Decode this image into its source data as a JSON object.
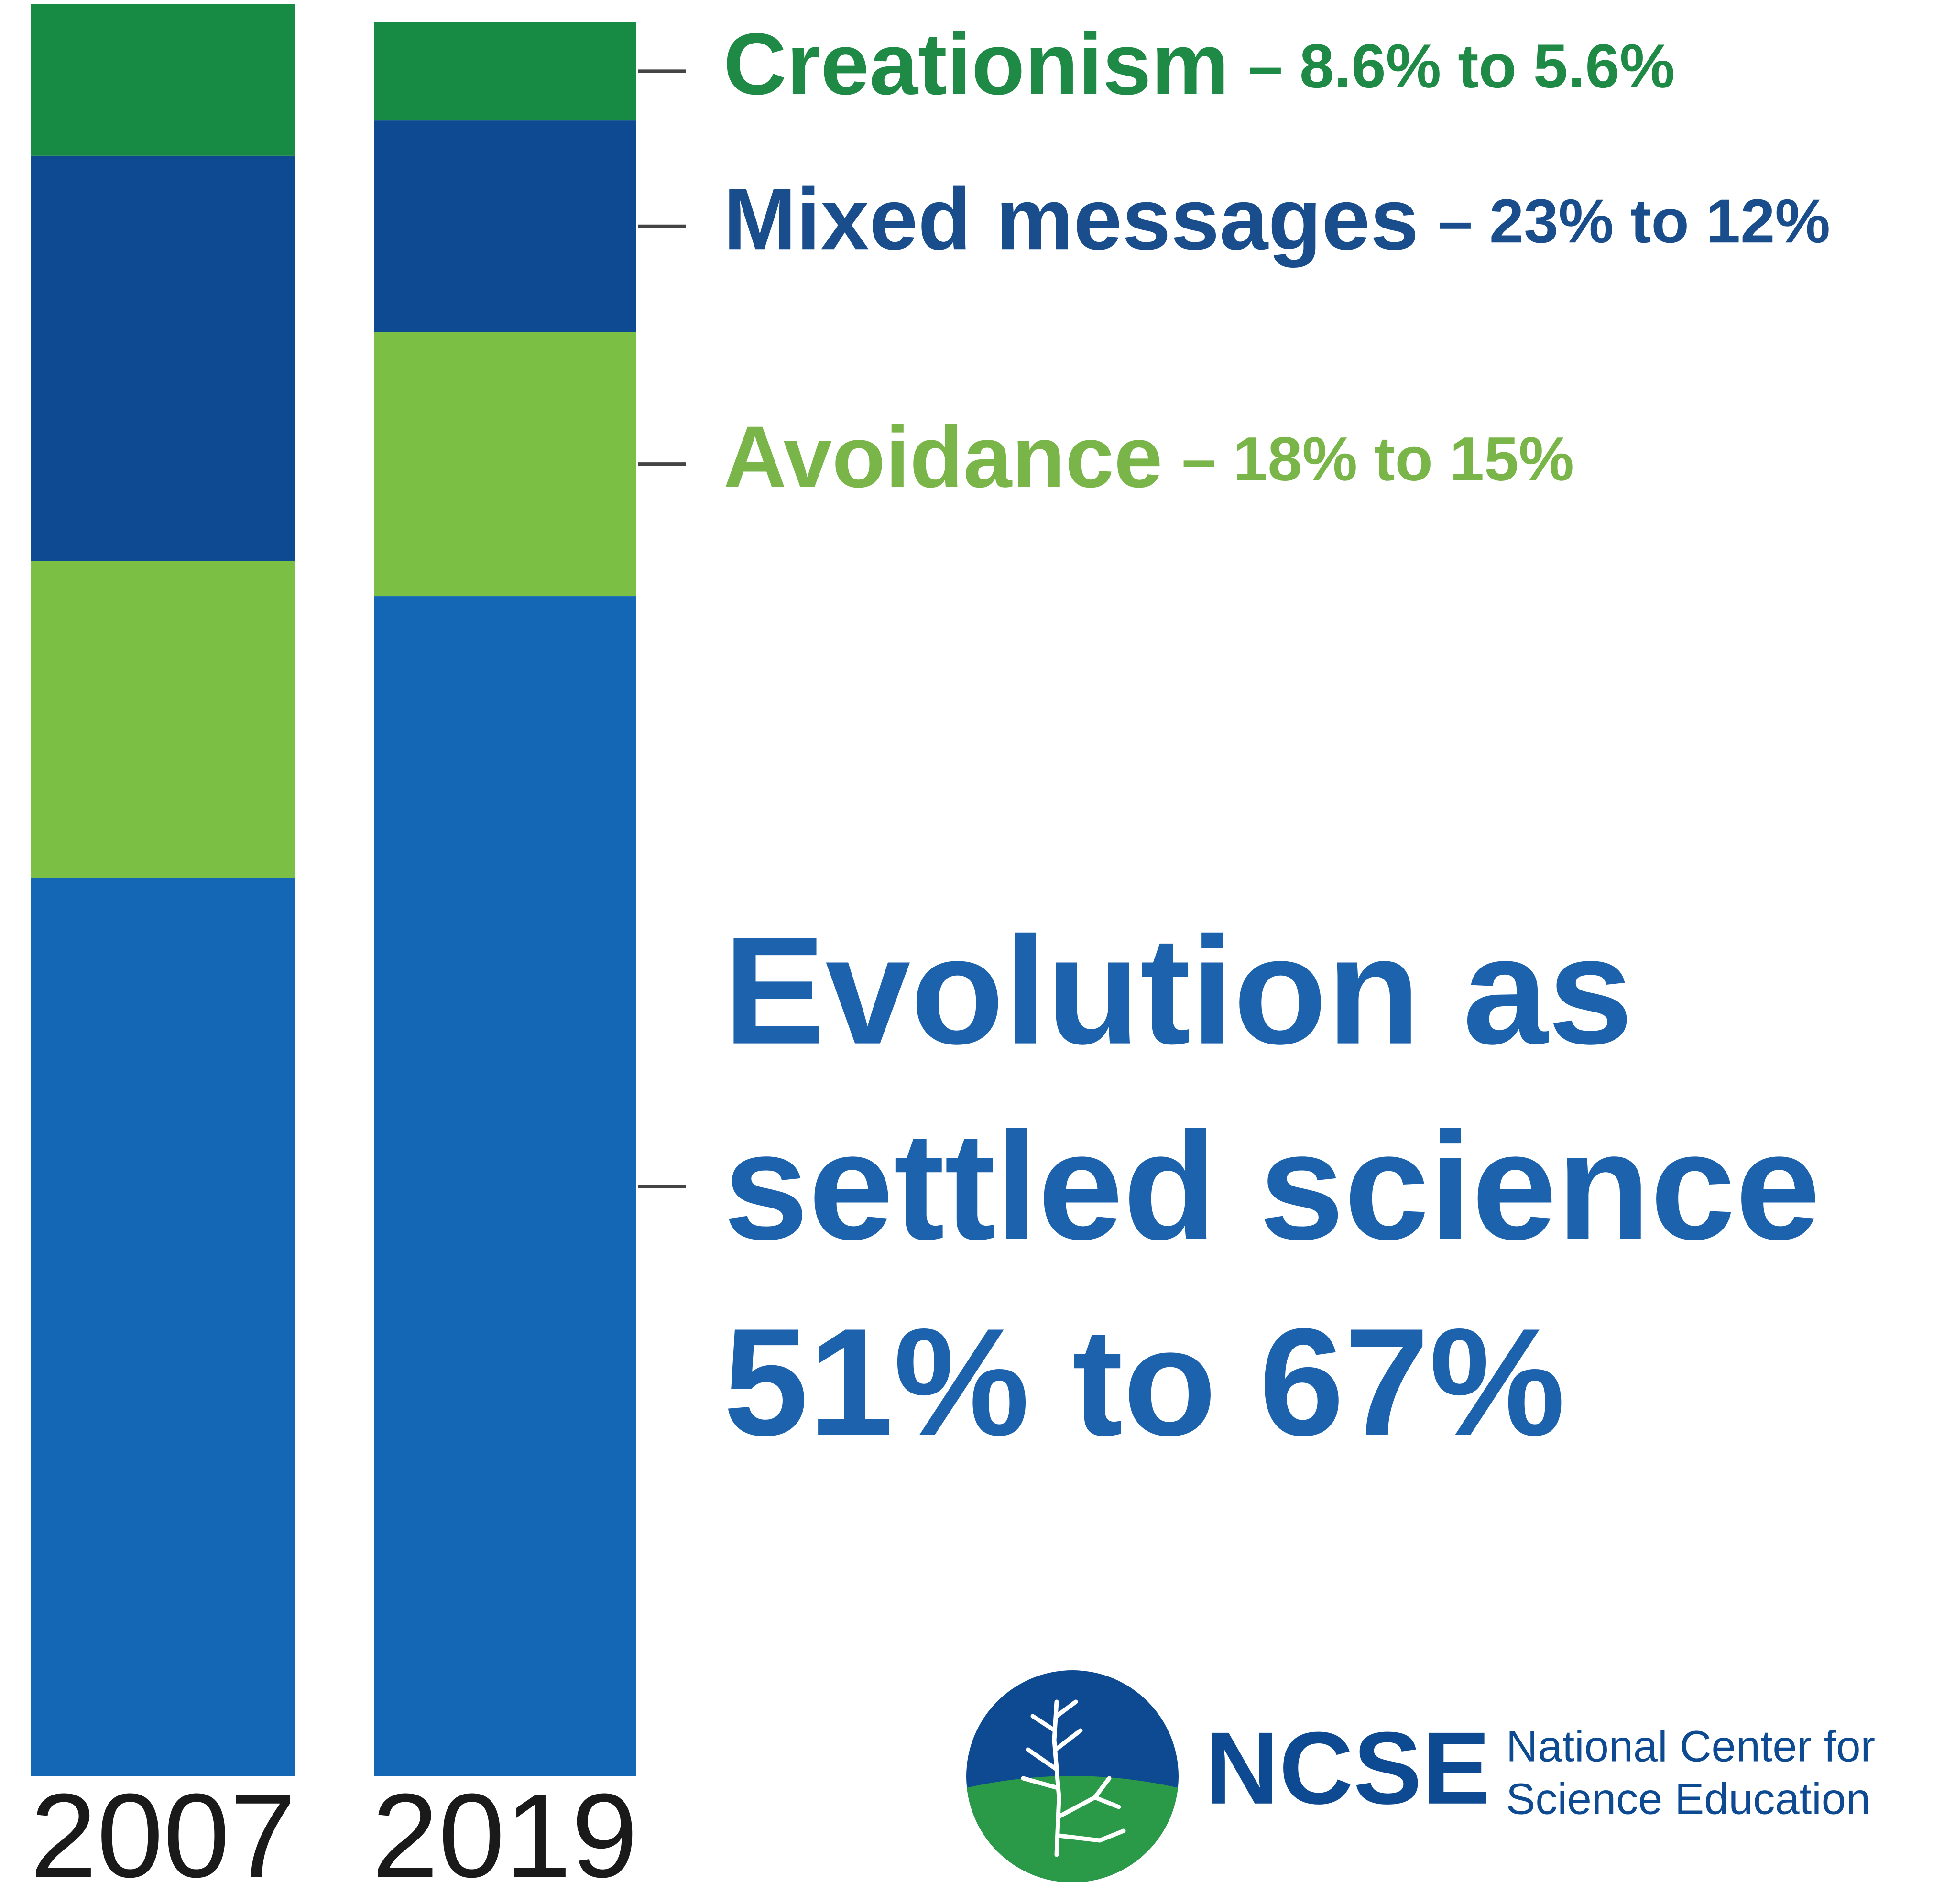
{
  "chart_data": {
    "type": "stacked_bar",
    "categories": [
      "2007",
      "2019"
    ],
    "ylim": [
      0,
      100
    ],
    "separator": "–",
    "connector": "to",
    "series": [
      {
        "name": "Evolution as settled science",
        "color": "#1467b4",
        "label_color": "#1c62ad",
        "label_style": "headline",
        "values": [
          51,
          67
        ],
        "value_labels": [
          "51%",
          "67%"
        ]
      },
      {
        "name": "Avoidance",
        "color": "#7bbf44",
        "label_color": "#79b548",
        "label_style": "inline",
        "values": [
          18,
          15
        ],
        "value_labels": [
          "18%",
          "15%"
        ]
      },
      {
        "name": "Mixed messages",
        "color": "#0e4a92",
        "label_color": "#194d8c",
        "label_style": "inline",
        "values": [
          23,
          12
        ],
        "value_labels": [
          "23%",
          "12%"
        ]
      },
      {
        "name": "Creationism",
        "color": "#178a43",
        "label_color": "#1e8a45",
        "label_style": "inline",
        "values": [
          8.6,
          5.6
        ],
        "value_labels": [
          "8.6%",
          "5.6%"
        ]
      }
    ]
  },
  "logo": {
    "acronym": "NCSE",
    "line1": "National Center for",
    "line2": "Science Education"
  }
}
